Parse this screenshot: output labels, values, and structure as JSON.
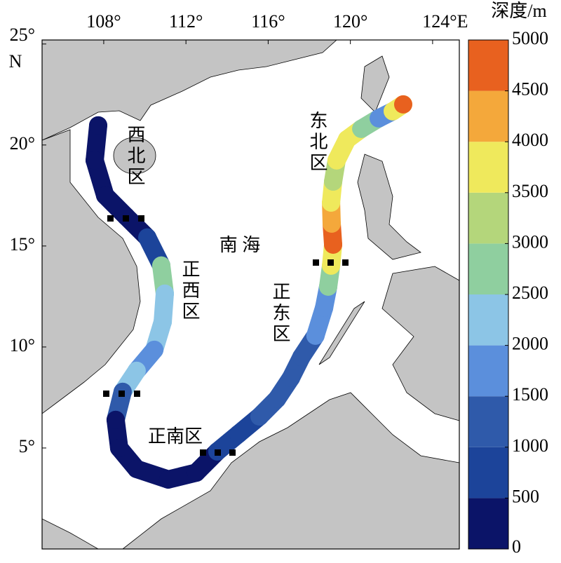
{
  "chart_data": {
    "type": "map",
    "xlim": [
      105,
      125.3
    ],
    "ylim": [
      0,
      25.2
    ],
    "xticks": [
      {
        "value": 108,
        "label": "108°"
      },
      {
        "value": 112,
        "label": "112°"
      },
      {
        "value": 116,
        "label": "116°"
      },
      {
        "value": 120,
        "label": "120°"
      },
      {
        "value": 124,
        "label": "124°E"
      }
    ],
    "yticks": [
      {
        "value": 25,
        "label": "25°"
      },
      {
        "value": 20,
        "label": "20°"
      },
      {
        "value": 15,
        "label": "15°"
      },
      {
        "value": 10,
        "label": "10°"
      },
      {
        "value": 5,
        "label": "5°"
      }
    ],
    "lat_unit": "N",
    "sea_label": "南 海",
    "regions": [
      "西北区",
      "正西区",
      "正南区",
      "正东区",
      "东北区"
    ],
    "track": {
      "lon": [
        107.73,
        107.56,
        108.07,
        109.09,
        110.12,
        110.8,
        110.97,
        110.87,
        110.46,
        109.6,
        108.92,
        108.58,
        108.75,
        109.6,
        111.14,
        112.5,
        113.53,
        114.55,
        115.58,
        116.43,
        117.11,
        117.62,
        118.3,
        118.72,
        118.92,
        119.06,
        119.16,
        119.09,
        119.06,
        119.16,
        119.33,
        119.84,
        120.53,
        121.38,
        122.06,
        122.57
      ],
      "lat": [
        20.97,
        19.24,
        17.5,
        16.46,
        15.42,
        14.03,
        12.64,
        11.25,
        9.86,
        8.82,
        7.78,
        6.39,
        5.0,
        3.96,
        3.44,
        3.78,
        4.83,
        5.69,
        6.56,
        7.43,
        8.47,
        9.51,
        10.56,
        11.94,
        12.99,
        14.03,
        15.07,
        16.11,
        17.15,
        18.19,
        19.24,
        20.28,
        20.8,
        21.32,
        21.67,
        22.01
      ],
      "depth": [
        100,
        100,
        200,
        400,
        800,
        2800,
        2200,
        2000,
        1800,
        2200,
        1200,
        300,
        200,
        200,
        200,
        300,
        600,
        800,
        1200,
        1100,
        1000,
        1200,
        1500,
        1500,
        2500,
        3500,
        4500,
        4200,
        3800,
        3200,
        3500,
        3800,
        2500,
        1500,
        3500,
        4800
      ]
    },
    "colorbar": {
      "label": "深度/m",
      "clim": [
        0,
        5000
      ],
      "ticks": [
        0,
        500,
        1000,
        1500,
        2000,
        2500,
        3000,
        3500,
        4000,
        4500,
        5000
      ],
      "colors": [
        "#0b1468",
        "#1c449a",
        "#2f5aaa",
        "#5b8fdc",
        "#8cc5e6",
        "#8fcf9f",
        "#b4d67b",
        "#efe95c",
        "#f4a83b",
        "#e8611f"
      ]
    }
  }
}
